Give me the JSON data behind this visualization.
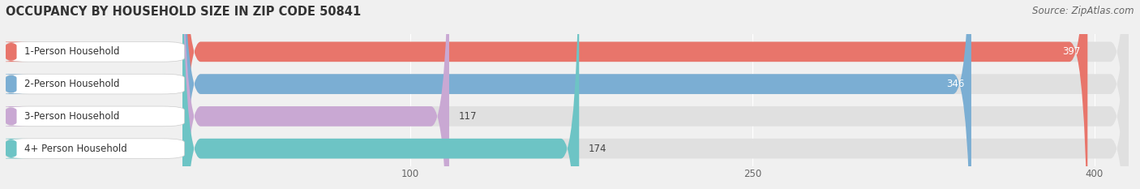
{
  "title": "OCCUPANCY BY HOUSEHOLD SIZE IN ZIP CODE 50841",
  "source": "Source: ZipAtlas.com",
  "categories": [
    "1-Person Household",
    "2-Person Household",
    "3-Person Household",
    "4+ Person Household"
  ],
  "values": [
    397,
    346,
    117,
    174
  ],
  "bar_colors": [
    "#E8756B",
    "#7BAED3",
    "#C9A8D3",
    "#6DC4C5"
  ],
  "x_ticks": [
    100,
    250,
    400
  ],
  "xlim": [
    0,
    415
  ],
  "background_color": "#f0f0f0",
  "bar_background_color": "#e0e0e0",
  "title_fontsize": 10.5,
  "source_fontsize": 8.5,
  "label_fontsize": 8.5,
  "value_fontsize": 8.5
}
